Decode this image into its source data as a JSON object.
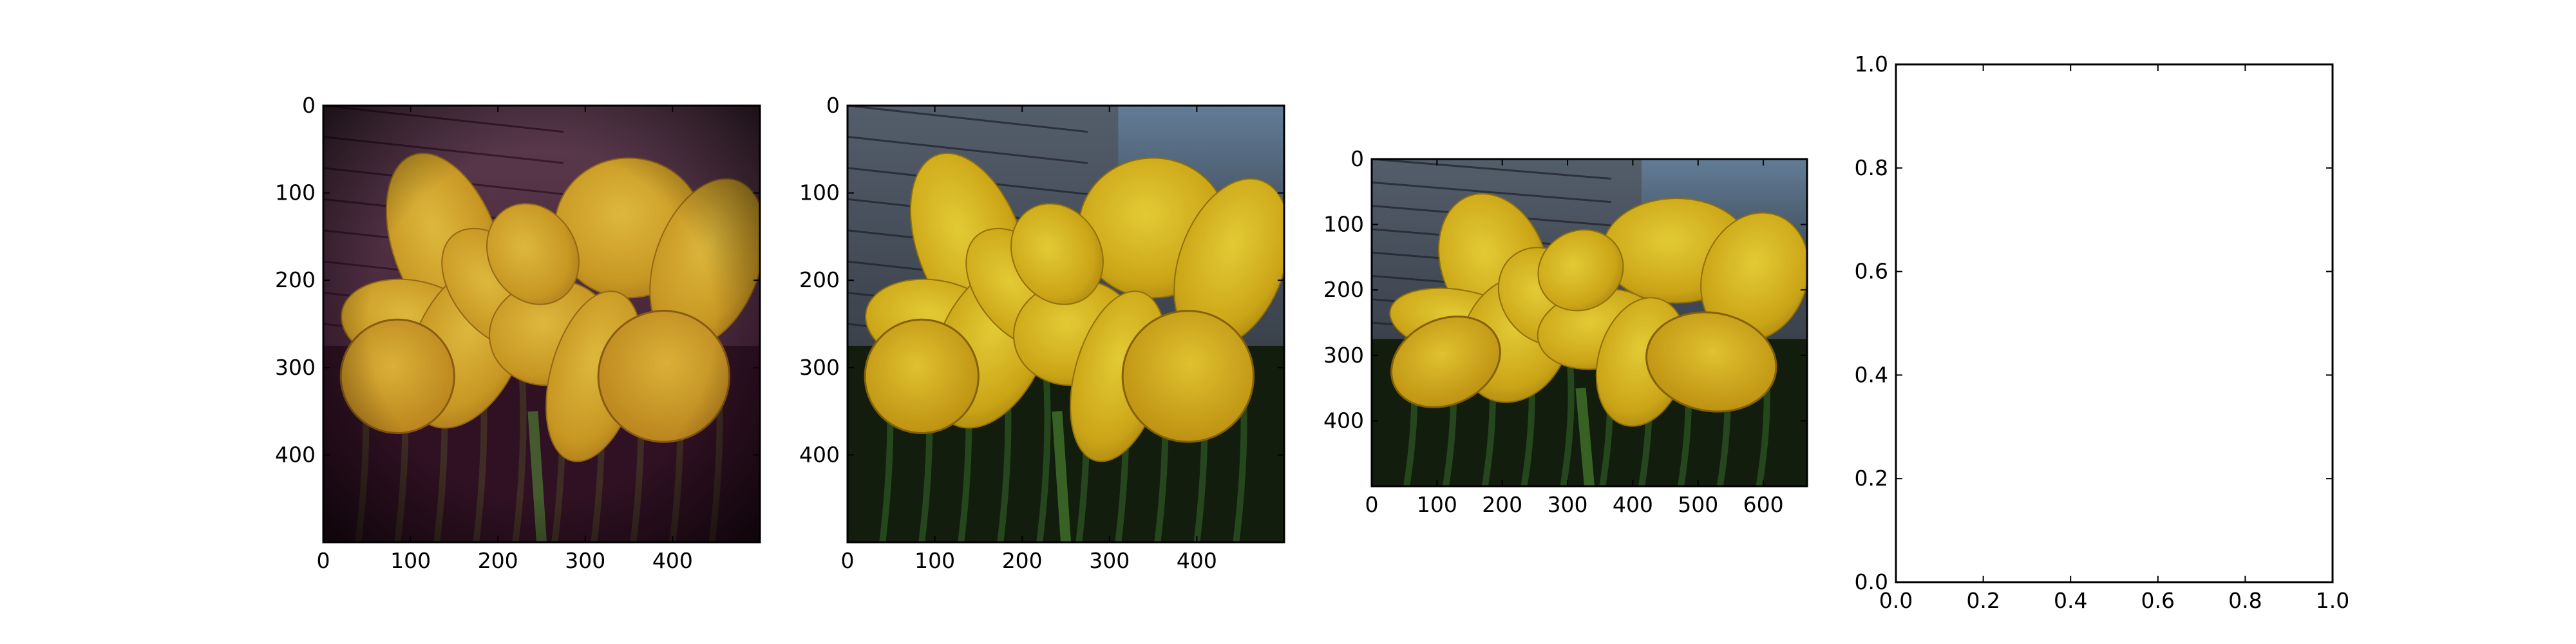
{
  "colors": {
    "frame": "#000000",
    "background": "#ffffff",
    "petal": "#e2bd1a",
    "siding": "#3b4250",
    "foliage": "#142010"
  },
  "chart_data": [
    {
      "type": "image",
      "image_description": "Vintage-tinted photo of two yellow daffodils (magenta/dark vignette) in front of house siding",
      "tint": "vintage",
      "xlim": [
        0,
        500
      ],
      "ylim": [
        500,
        0
      ],
      "x_ticks": [
        0,
        100,
        200,
        300,
        400
      ],
      "y_ticks": [
        0,
        100,
        200,
        300,
        400
      ],
      "x_tick_labels": [
        "0",
        "100",
        "200",
        "300",
        "400"
      ],
      "y_tick_labels": [
        "0",
        "100",
        "200",
        "300",
        "400"
      ]
    },
    {
      "type": "image",
      "image_description": "Natural-color photo of two yellow daffodils in front of blue-gray house siding, cropped square",
      "tint": "natural",
      "xlim": [
        0,
        500
      ],
      "ylim": [
        500,
        0
      ],
      "x_ticks": [
        0,
        100,
        200,
        300,
        400
      ],
      "y_ticks": [
        0,
        100,
        200,
        300,
        400
      ],
      "x_tick_labels": [
        "0",
        "100",
        "200",
        "300",
        "400"
      ],
      "y_tick_labels": [
        "0",
        "100",
        "200",
        "300",
        "400"
      ]
    },
    {
      "type": "image",
      "image_description": "Wider natural-color photo of two yellow daffodils with siding and garden",
      "tint": "natural-wide",
      "xlim": [
        0,
        667
      ],
      "ylim": [
        500,
        0
      ],
      "x_ticks": [
        0,
        100,
        200,
        300,
        400,
        500,
        600
      ],
      "y_ticks": [
        0,
        100,
        200,
        300,
        400
      ],
      "x_tick_labels": [
        "0",
        "100",
        "200",
        "300",
        "400",
        "500",
        "600"
      ],
      "y_tick_labels": [
        "0",
        "100",
        "200",
        "300",
        "400"
      ]
    },
    {
      "type": "empty",
      "xlim": [
        0,
        1
      ],
      "ylim": [
        0,
        1
      ],
      "x_ticks": [
        0,
        0.2,
        0.4,
        0.6,
        0.8,
        1.0
      ],
      "y_ticks": [
        0,
        0.2,
        0.4,
        0.6,
        0.8,
        1.0
      ],
      "x_tick_labels": [
        "0.0",
        "0.2",
        "0.4",
        "0.6",
        "0.8",
        "1.0"
      ],
      "y_tick_labels": [
        "0.0",
        "0.2",
        "0.4",
        "0.6",
        "0.8",
        "1.0"
      ]
    }
  ]
}
